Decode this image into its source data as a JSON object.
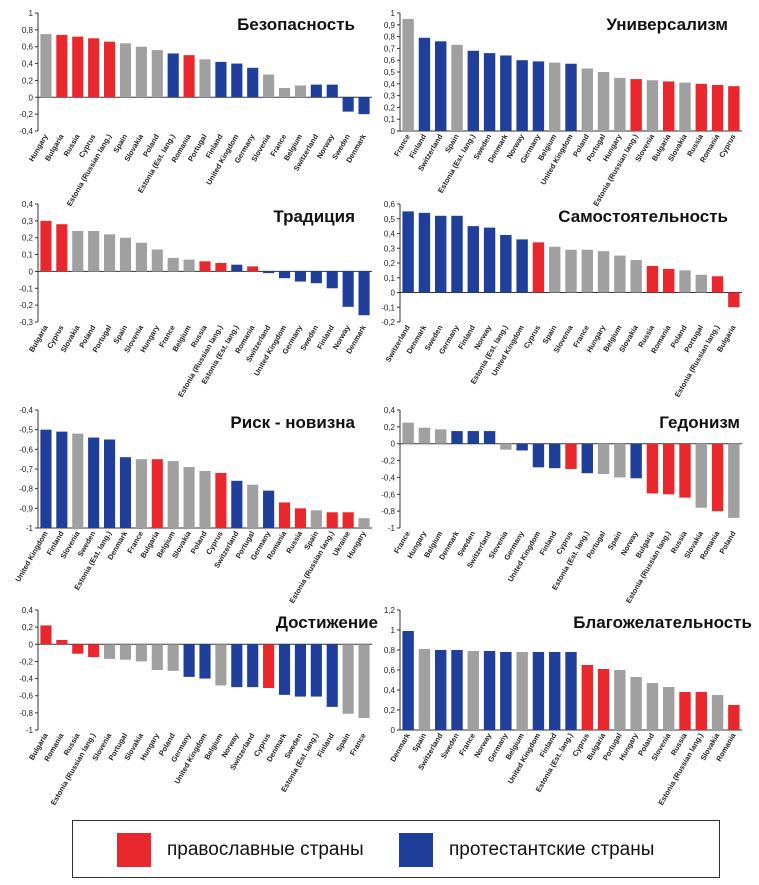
{
  "colors": {
    "orthodox": "#e8282d",
    "protestant": "#1f3f9a",
    "other": "#a0a0a0"
  },
  "legend": {
    "orthodox_label": "православные страны",
    "protestant_label": "протестантские страны"
  },
  "chart_data": [
    {
      "type": "bar",
      "title": "Безопасность",
      "ylim": [
        -0.4,
        1
      ],
      "ticks": [
        "1",
        "0,8",
        "0,6",
        "0,4",
        "0,2",
        "0",
        "-0,2",
        "-0,4"
      ],
      "tick_values": [
        1,
        0.8,
        0.6,
        0.4,
        0.2,
        0,
        -0.2,
        -0.4
      ],
      "categories": [
        "Hungary",
        "Bulgaria",
        "Russia",
        "Cyprus",
        "Estonia (Russian lang.)",
        "Spain",
        "Slovakia",
        "Poland",
        "Estonia (Est. lang.)",
        "Romania",
        "Portugal",
        "Finland",
        "United Kingdom",
        "Germany",
        "Slovenia",
        "France",
        "Belgium",
        "Switzerland",
        "Norway",
        "Sweden",
        "Denmark"
      ],
      "values": [
        0.75,
        0.74,
        0.72,
        0.7,
        0.66,
        0.64,
        0.6,
        0.56,
        0.52,
        0.5,
        0.45,
        0.42,
        0.4,
        0.35,
        0.27,
        0.11,
        0.14,
        0.15,
        0.15,
        -0.17,
        -0.2
      ],
      "groups": [
        "other",
        "orthodox",
        "orthodox",
        "orthodox",
        "orthodox",
        "other",
        "other",
        "other",
        "protestant",
        "orthodox",
        "other",
        "protestant",
        "protestant",
        "protestant",
        "other",
        "other",
        "other",
        "protestant",
        "protestant",
        "protestant",
        "protestant"
      ]
    },
    {
      "type": "bar",
      "title": "Универсализм",
      "ylim": [
        0,
        1
      ],
      "ticks": [
        "1",
        "0,9",
        "0,8",
        "0,7",
        "0,6",
        "0,5",
        "0,4",
        "0,3",
        "0,2",
        "0,1",
        "0"
      ],
      "tick_values": [
        1,
        0.9,
        0.8,
        0.7,
        0.6,
        0.5,
        0.4,
        0.3,
        0.2,
        0.1,
        0
      ],
      "categories": [
        "France",
        "Finland",
        "Switzerland",
        "Spain",
        "Estonia (Est. lang.)",
        "Sweden",
        "Denmark",
        "Norway",
        "Germany",
        "Belgium",
        "United Kingdom",
        "Poland",
        "Portugal",
        "Hungary",
        "Estonia (Russian lang.)",
        "Slovenia",
        "Bulgaria",
        "Slovakia",
        "Russia",
        "Romania",
        "Cyprus"
      ],
      "values": [
        0.95,
        0.79,
        0.76,
        0.73,
        0.68,
        0.66,
        0.64,
        0.6,
        0.59,
        0.58,
        0.57,
        0.53,
        0.5,
        0.45,
        0.44,
        0.43,
        0.42,
        0.41,
        0.4,
        0.39,
        0.38
      ],
      "groups": [
        "other",
        "protestant",
        "protestant",
        "other",
        "protestant",
        "protestant",
        "protestant",
        "protestant",
        "protestant",
        "other",
        "protestant",
        "other",
        "other",
        "other",
        "orthodox",
        "other",
        "orthodox",
        "other",
        "orthodox",
        "orthodox",
        "orthodox"
      ]
    },
    {
      "type": "bar",
      "title": "Традиция",
      "ylim": [
        -0.3,
        0.4
      ],
      "ticks": [
        "0,4",
        "0,3",
        "0,2",
        "0,1",
        "0",
        "-0,1",
        "-0,2",
        "-0,3"
      ],
      "tick_values": [
        0.4,
        0.3,
        0.2,
        0.1,
        0,
        -0.1,
        -0.2,
        -0.3
      ],
      "categories": [
        "Bulgaria",
        "Cyprus",
        "Slovakia",
        "Poland",
        "Portugal",
        "Spain",
        "Slovenia",
        "Hungary",
        "France",
        "Belgium",
        "Russia",
        "Estonia (Russian lang.)",
        "Estonia (Est. lang.)",
        "Romania",
        "Switzerland",
        "United Kingdom",
        "Germany",
        "Sweden",
        "Finland",
        "Norway",
        "Denmark"
      ],
      "values": [
        0.3,
        0.28,
        0.24,
        0.24,
        0.22,
        0.2,
        0.17,
        0.13,
        0.08,
        0.07,
        0.06,
        0.05,
        0.04,
        0.03,
        -0.01,
        -0.04,
        -0.06,
        -0.07,
        -0.1,
        -0.21,
        -0.26
      ],
      "groups": [
        "orthodox",
        "orthodox",
        "other",
        "other",
        "other",
        "other",
        "other",
        "other",
        "other",
        "other",
        "orthodox",
        "orthodox",
        "protestant",
        "orthodox",
        "protestant",
        "protestant",
        "protestant",
        "protestant",
        "protestant",
        "protestant",
        "protestant"
      ]
    },
    {
      "type": "bar",
      "title": "Самостоятельность",
      "ylim": [
        -0.2,
        0.6
      ],
      "ticks": [
        "0,6",
        "0,5",
        "0,4",
        "0,3",
        "0,2",
        "0,1",
        "0",
        "-0,1",
        "-0,2"
      ],
      "tick_values": [
        0.6,
        0.5,
        0.4,
        0.3,
        0.2,
        0.1,
        0,
        -0.1,
        -0.2
      ],
      "categories": [
        "Switzerland",
        "Denmark",
        "Sweden",
        "Germany",
        "Finland",
        "Norway",
        "Estonia (Est. lang.)",
        "United Kingdom",
        "Cyprus",
        "Spain",
        "Slovenia",
        "France",
        "Hungary",
        "Belgium",
        "Slovakia",
        "Russia",
        "Romania",
        "Poland",
        "Portugal",
        "Estonia (Russian lang.)",
        "Bulgaria"
      ],
      "values": [
        0.55,
        0.54,
        0.52,
        0.52,
        0.45,
        0.44,
        0.39,
        0.36,
        0.34,
        0.31,
        0.29,
        0.29,
        0.28,
        0.25,
        0.22,
        0.18,
        0.16,
        0.15,
        0.12,
        0.11,
        -0.1
      ],
      "groups": [
        "protestant",
        "protestant",
        "protestant",
        "protestant",
        "protestant",
        "protestant",
        "protestant",
        "protestant",
        "orthodox",
        "other",
        "other",
        "other",
        "other",
        "other",
        "other",
        "orthodox",
        "orthodox",
        "other",
        "other",
        "orthodox",
        "orthodox"
      ]
    },
    {
      "type": "bar",
      "title": "Риск - новизна",
      "ylim": [
        -1,
        -0.4
      ],
      "ticks": [
        "-0,4",
        "-0,5",
        "-0,6",
        "-0,7",
        "-0,8",
        "-0,9",
        "-1"
      ],
      "tick_values": [
        -0.4,
        -0.5,
        -0.6,
        -0.7,
        -0.8,
        -0.9,
        -1
      ],
      "categories": [
        "United Kingdom",
        "Finland",
        "Slovenia",
        "Sweden",
        "Estonia (Est. lang.)",
        "Denmark",
        "France",
        "Bulgaria",
        "Belgium",
        "Slovakia",
        "Poland",
        "Cyprus",
        "Switzerland",
        "Portugal",
        "Germany",
        "Romania",
        "Russia",
        "Spain",
        "Estonia (Russian lang.)",
        "Ukraine",
        "Hungary"
      ],
      "values": [
        -0.5,
        -0.51,
        -0.52,
        -0.54,
        -0.55,
        -0.64,
        -0.65,
        -0.65,
        -0.66,
        -0.69,
        -0.71,
        -0.72,
        -0.76,
        -0.78,
        -0.81,
        -0.87,
        -0.9,
        -0.91,
        -0.92,
        -0.92,
        -0.95
      ],
      "groups": [
        "protestant",
        "protestant",
        "other",
        "protestant",
        "protestant",
        "protestant",
        "other",
        "orthodox",
        "other",
        "other",
        "other",
        "orthodox",
        "protestant",
        "other",
        "protestant",
        "orthodox",
        "orthodox",
        "other",
        "orthodox",
        "orthodox",
        "other"
      ]
    },
    {
      "type": "bar",
      "title": "Гедонизм",
      "ylim": [
        -1,
        0.4
      ],
      "ticks": [
        "0,4",
        "0,2",
        "0",
        "-0,2",
        "-0,4",
        "-0,6",
        "-0,8",
        "-1"
      ],
      "tick_values": [
        0.4,
        0.2,
        0,
        -0.2,
        -0.4,
        -0.6,
        -0.8,
        -1
      ],
      "categories": [
        "France",
        "Hungary",
        "Belgium",
        "Denmark",
        "Sweden",
        "Switzerland",
        "Slovenia",
        "Germany",
        "United Kingdom",
        "Finland",
        "Cyprus",
        "Estonia (Est. lang.)",
        "Portugal",
        "Spain",
        "Norway",
        "Bulgaria",
        "Estonia (Russian lang.)",
        "Russia",
        "Slovakia",
        "Romania",
        "Poland"
      ],
      "values": [
        0.25,
        0.19,
        0.17,
        0.15,
        0.15,
        0.15,
        -0.07,
        -0.08,
        -0.28,
        -0.29,
        -0.3,
        -0.35,
        -0.36,
        -0.4,
        -0.41,
        -0.59,
        -0.6,
        -0.64,
        -0.76,
        -0.8,
        -0.88
      ],
      "groups": [
        "other",
        "other",
        "other",
        "protestant",
        "protestant",
        "protestant",
        "other",
        "protestant",
        "protestant",
        "protestant",
        "orthodox",
        "protestant",
        "other",
        "other",
        "protestant",
        "orthodox",
        "orthodox",
        "orthodox",
        "other",
        "orthodox",
        "other"
      ]
    },
    {
      "type": "bar",
      "title": "Достижение",
      "ylim": [
        -1,
        0.4
      ],
      "ticks": [
        "0,4",
        "0,2",
        "0",
        "-0,2",
        "-0,4",
        "-0,6",
        "-0,8",
        "-1"
      ],
      "tick_values": [
        0.4,
        0.2,
        0,
        -0.2,
        -0.4,
        -0.6,
        -0.8,
        -1
      ],
      "categories": [
        "Bulgaria",
        "Romania",
        "Russia",
        "Estonia (Russian lang.)",
        "Slovenia",
        "Portugal",
        "Slovakia",
        "Hungary",
        "Poland",
        "Germany",
        "United Kingdom",
        "Belgium",
        "Norway",
        "Switzerland",
        "Cyprus",
        "Denmark",
        "Sweden",
        "Estonia (Est. lang.)",
        "Finland",
        "Spain",
        "France"
      ],
      "values": [
        0.22,
        0.05,
        -0.11,
        -0.15,
        -0.17,
        -0.18,
        -0.2,
        -0.3,
        -0.31,
        -0.38,
        -0.4,
        -0.48,
        -0.5,
        -0.5,
        -0.51,
        -0.59,
        -0.61,
        -0.61,
        -0.73,
        -0.81,
        -0.86
      ],
      "groups": [
        "orthodox",
        "orthodox",
        "orthodox",
        "orthodox",
        "other",
        "other",
        "other",
        "other",
        "other",
        "protestant",
        "protestant",
        "other",
        "protestant",
        "protestant",
        "orthodox",
        "protestant",
        "protestant",
        "protestant",
        "protestant",
        "other",
        "other"
      ]
    },
    {
      "type": "bar",
      "title": "Благожелательность",
      "ylim": [
        0,
        1.2
      ],
      "ticks": [
        "1,2",
        "1",
        "0,8",
        "0,6",
        "0,4",
        "0,2",
        "0"
      ],
      "tick_values": [
        1.2,
        1,
        0.8,
        0.6,
        0.4,
        0.2,
        0
      ],
      "categories": [
        "Denmark",
        "Spain",
        "Switzerland",
        "Sweden",
        "France",
        "Norway",
        "Germany",
        "Belgium",
        "United Kingdom",
        "Finland",
        "Estonia (Est. lang.)",
        "Cyprus",
        "Bulgaria",
        "Portugal",
        "Hungary",
        "Poland",
        "Slovenia",
        "Russia",
        "Estonia (Russian lang.)",
        "Slovakia",
        "Romania"
      ],
      "values": [
        0.99,
        0.81,
        0.8,
        0.8,
        0.79,
        0.79,
        0.78,
        0.78,
        0.78,
        0.78,
        0.78,
        0.65,
        0.61,
        0.6,
        0.53,
        0.47,
        0.43,
        0.38,
        0.38,
        0.35,
        0.25
      ],
      "groups": [
        "protestant",
        "other",
        "protestant",
        "protestant",
        "other",
        "protestant",
        "protestant",
        "other",
        "protestant",
        "protestant",
        "protestant",
        "orthodox",
        "orthodox",
        "other",
        "other",
        "other",
        "other",
        "orthodox",
        "orthodox",
        "other",
        "orthodox"
      ]
    }
  ]
}
